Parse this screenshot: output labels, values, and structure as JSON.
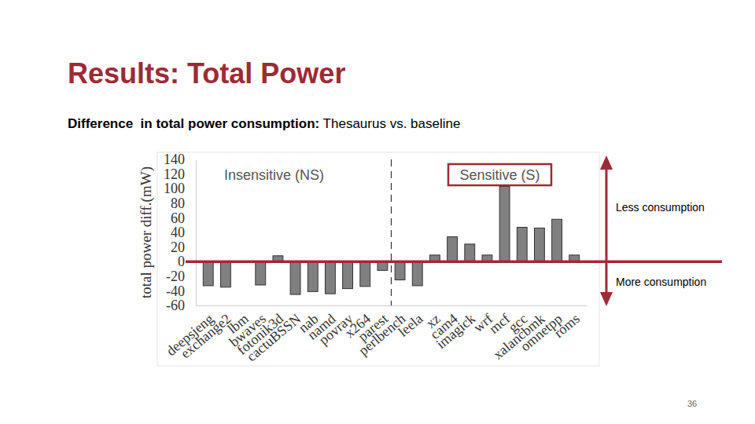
{
  "chart_data": {
    "type": "bar",
    "title": "Results: Total Power",
    "subtitle": "Difference  in total power consumption: Thesaurus vs. baseline",
    "y_label": "total power diff.(mW)",
    "categories": [
      "deepsjeng",
      "exchange2",
      "lbm",
      "bwaves",
      "fotonik3d",
      "cactuBSSN",
      "nab",
      "namd",
      "povray",
      "x264",
      "parest",
      "perlbench",
      "leela",
      "xz",
      "cam4",
      "imagick",
      "wrf",
      "mcf",
      "gcc",
      "xalancbmk",
      "omnetpp",
      "roms"
    ],
    "values": [
      -33,
      -35,
      -1,
      -32,
      8,
      -45,
      -41,
      -44,
      -37,
      -34,
      -12,
      -25,
      -33,
      9,
      34,
      24,
      9,
      103,
      47,
      46,
      58,
      9
    ],
    "color": "#808080",
    "ylim": [
      -60,
      140
    ],
    "yticks": [
      -60,
      -40,
      -20,
      0,
      20,
      40,
      60,
      80,
      100,
      120,
      140
    ],
    "grid": false,
    "annotations": [
      "Insensitive (NS)",
      "Sensitive (S)",
      "Less consumption",
      "More consumption"
    ],
    "page_number": "36"
  }
}
